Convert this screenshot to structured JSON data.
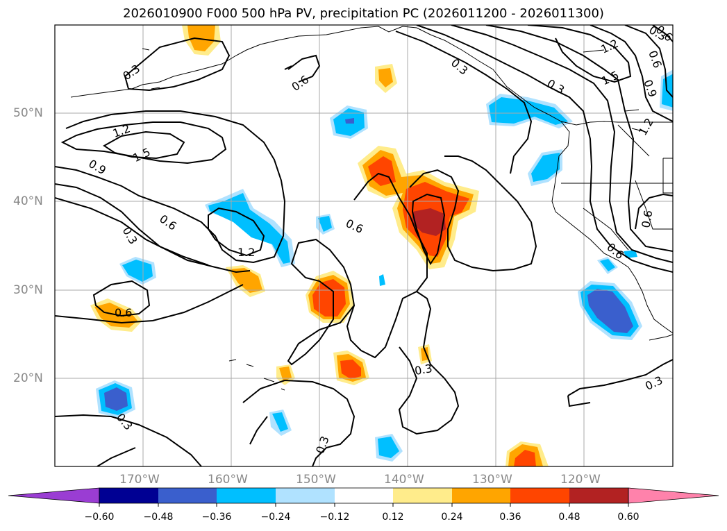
{
  "title": "2026010900 F000 500 hPa PV, precipitation PC (2026011200 - 2026011300)",
  "map": {
    "lat_labels": [
      "50°N",
      "40°N",
      "30°N",
      "20°N"
    ],
    "lon_labels": [
      "170°W",
      "160°W",
      "150°W",
      "140°W",
      "130°W",
      "120°W"
    ],
    "contour_labels": [
      "0.3",
      "0.6",
      "1.2",
      "1.5",
      "0.9",
      "0.6",
      "0.3",
      "1.2",
      "0.6",
      "0.6",
      "0.3",
      "0.3",
      "0.3",
      "0.3",
      "1.2",
      "1.5",
      "0.9",
      "1.2",
      "0.6",
      "0.6",
      "0.3",
      "0.3",
      "0.3",
      "0.6",
      "0.6"
    ],
    "gridlines": true,
    "coastlines": true
  },
  "colorbar": {
    "ticks": [
      "−0.60",
      "−0.48",
      "−0.36",
      "−0.24",
      "−0.12",
      "0.12",
      "0.24",
      "0.36",
      "0.48",
      "0.60"
    ],
    "colors": [
      "#9a3dd3",
      "#000093",
      "#3a5fcd",
      "#00bfff",
      "#b0e2ff",
      "#ffffff",
      "#ffec8b",
      "#ffa500",
      "#ff4500",
      "#b22222",
      "#ff82ab"
    ],
    "extend": "both"
  }
}
